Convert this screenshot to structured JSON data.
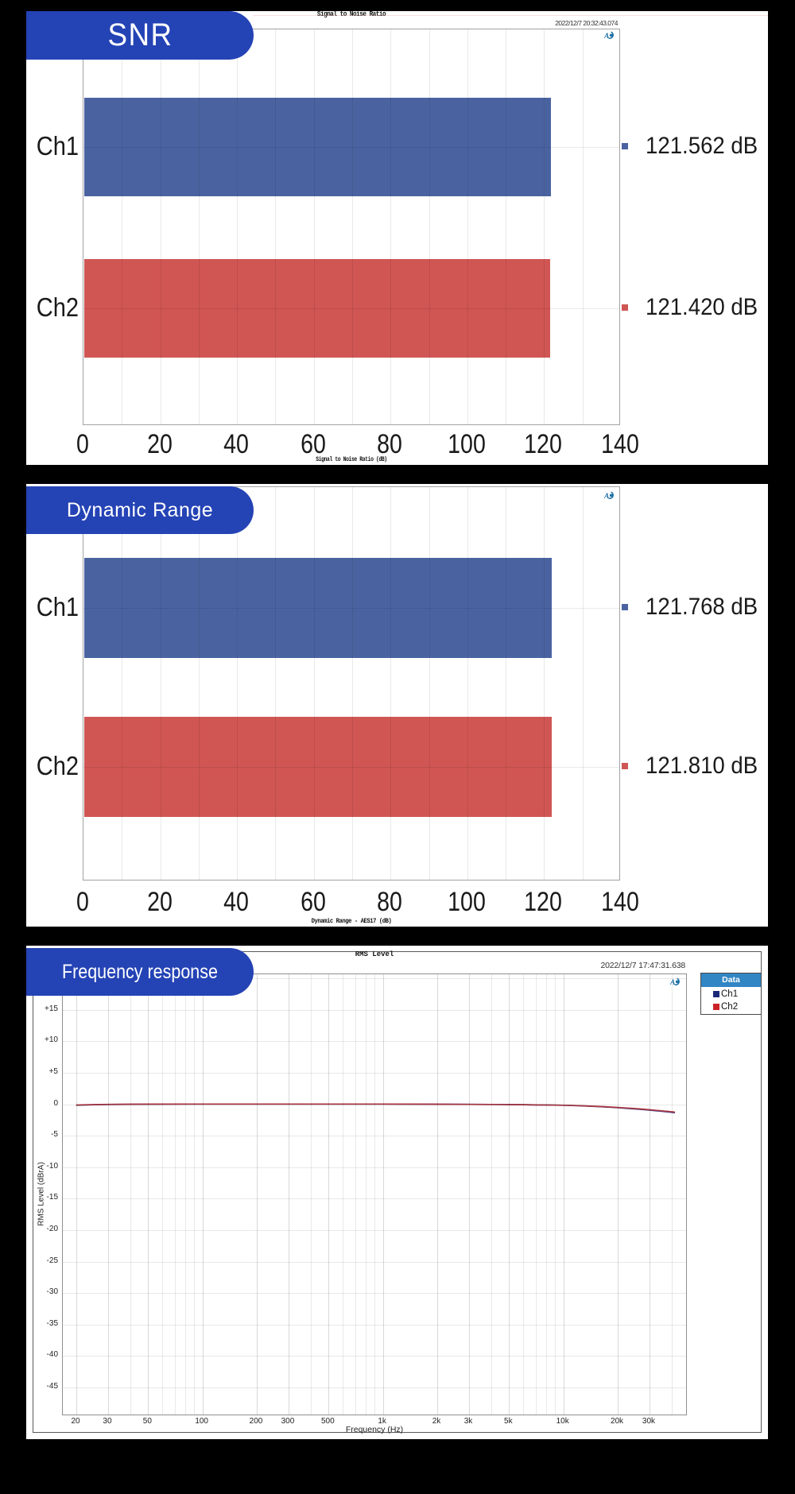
{
  "page": {
    "background": "#000000"
  },
  "colors": {
    "badge_blue": "#2443b5",
    "bar_blue": "#4a63a0",
    "bar_red": "#d05654",
    "legend_navy": "#1b2878",
    "legend_red": "#cb2227",
    "legend_header_blue": "#3386c4",
    "curve_red": "#ab3742",
    "curve_blue": "#2c3b8c",
    "ap_logo_blue": "#1d6fa5"
  },
  "chart_data": [
    {
      "type": "bar",
      "orientation": "horizontal",
      "badge": "SNR",
      "title": "Signal to Noise Ratio",
      "timestamp": "2022/12/7 20:32:43.074",
      "categories": [
        "Ch1",
        "Ch2"
      ],
      "values": [
        121.562,
        121.42
      ],
      "value_labels": [
        "121.562 dB",
        "121.420 dB"
      ],
      "bar_colors": [
        "#4a63a0",
        "#d05654"
      ],
      "xlabel": "Signal to Noise Ratio (dB)",
      "xlim": [
        0,
        140
      ],
      "x_tick_step": 20,
      "x_grid_step": 10,
      "x_tick_labels": [
        "0",
        "20",
        "40",
        "60",
        "80",
        "100",
        "120",
        "140"
      ],
      "legend_position": "none",
      "grid": true
    },
    {
      "type": "bar",
      "orientation": "horizontal",
      "badge": "Dynamic Range",
      "title": "",
      "timestamp": "",
      "categories": [
        "Ch1",
        "Ch2"
      ],
      "values": [
        121.768,
        121.81
      ],
      "value_labels": [
        "121.768 dB",
        "121.810 dB"
      ],
      "bar_colors": [
        "#4a63a0",
        "#d05654"
      ],
      "xlabel": "Dynamic Range - AES17 (dB)",
      "xlim": [
        0,
        140
      ],
      "x_tick_step": 20,
      "x_grid_step": 10,
      "x_tick_labels": [
        "0",
        "20",
        "40",
        "60",
        "80",
        "100",
        "120",
        "140"
      ],
      "legend_position": "none",
      "grid": true
    },
    {
      "type": "line",
      "x_scale": "log",
      "badge": "Frequency response",
      "title": "RMS Level",
      "timestamp": "2022/12/7 17:47:31.638",
      "xlabel": "Frequency (Hz)",
      "ylabel": "RMS Level (dBrA)",
      "ylim": [
        -49.6,
        20.6
      ],
      "xlim_hz": [
        16.7,
        48800
      ],
      "y_ticks": [
        15,
        10,
        5,
        0,
        -5,
        -10,
        -15,
        -20,
        -25,
        -30,
        -35,
        -40,
        -45
      ],
      "y_tick_labels": [
        "+15",
        "+10",
        "+5",
        "0",
        "-5",
        "-10",
        "-15",
        "-20",
        "-25",
        "-30",
        "-35",
        "-40",
        "-45"
      ],
      "y_grid_values": [
        20,
        15,
        10,
        5,
        0,
        -5,
        -10,
        -15,
        -20,
        -25,
        -30,
        -35,
        -40,
        -45
      ],
      "x_major_ticks": [
        20,
        30,
        50,
        100,
        200,
        300,
        500,
        1000,
        2000,
        3000,
        5000,
        10000,
        20000,
        30000
      ],
      "x_tick_labels": [
        "20",
        "30",
        "50",
        "100",
        "200",
        "300",
        "500",
        "1k",
        "2k",
        "3k",
        "5k",
        "10k",
        "20k",
        "30k"
      ],
      "x_minor_gridlines": [
        40,
        60,
        70,
        80,
        90,
        400,
        600,
        700,
        800,
        900,
        4000,
        6000,
        7000,
        8000,
        9000,
        40000
      ],
      "legend_position": "top-right",
      "legend": {
        "title": "Data",
        "entries": [
          {
            "label": "Ch1",
            "color": "#1b2878"
          },
          {
            "label": "Ch2",
            "color": "#cb2227"
          }
        ]
      },
      "grid": true,
      "series": [
        {
          "name": "Ch1",
          "color": "#2c3b8c",
          "points": [
            [
              20,
              -0.16
            ],
            [
              25,
              -0.09
            ],
            [
              30,
              -0.05
            ],
            [
              40,
              -0.01
            ],
            [
              50,
              0.0
            ],
            [
              80,
              0.02
            ],
            [
              150,
              0.03
            ],
            [
              300,
              0.03
            ],
            [
              600,
              0.03
            ],
            [
              1000,
              0.02
            ],
            [
              1500,
              0.01
            ],
            [
              2000,
              0.0
            ],
            [
              3000,
              -0.02
            ],
            [
              4000,
              -0.04
            ],
            [
              5000,
              -0.06
            ],
            [
              6000,
              -0.08
            ],
            [
              7000,
              -0.11
            ],
            [
              8000,
              -0.13
            ],
            [
              10000,
              -0.17
            ],
            [
              12000,
              -0.24
            ],
            [
              14000,
              -0.32
            ],
            [
              16000,
              -0.4
            ],
            [
              18000,
              -0.48
            ],
            [
              20000,
              -0.56
            ],
            [
              22000,
              -0.64
            ],
            [
              25000,
              -0.76
            ],
            [
              28000,
              -0.87
            ],
            [
              30000,
              -0.95
            ],
            [
              33000,
              -1.06
            ],
            [
              35000,
              -1.13
            ],
            [
              38000,
              -1.24
            ],
            [
              41000,
              -1.35
            ]
          ]
        },
        {
          "name": "Ch2",
          "color": "#ab3742",
          "points": [
            [
              20,
              -0.12
            ],
            [
              25,
              -0.06
            ],
            [
              30,
              -0.03
            ],
            [
              40,
              0.0
            ],
            [
              50,
              0.01
            ],
            [
              80,
              0.02
            ],
            [
              150,
              0.03
            ],
            [
              300,
              0.03
            ],
            [
              600,
              0.03
            ],
            [
              1000,
              0.02
            ],
            [
              1500,
              0.01
            ],
            [
              2000,
              0.0
            ],
            [
              3000,
              -0.02
            ],
            [
              4000,
              -0.04
            ],
            [
              5000,
              -0.06
            ],
            [
              6000,
              -0.08
            ],
            [
              7000,
              -0.11
            ],
            [
              8000,
              -0.13
            ],
            [
              10000,
              -0.17
            ],
            [
              12000,
              -0.23
            ],
            [
              14000,
              -0.3
            ],
            [
              16000,
              -0.37
            ],
            [
              18000,
              -0.44
            ],
            [
              20000,
              -0.52
            ],
            [
              22000,
              -0.59
            ],
            [
              25000,
              -0.7
            ],
            [
              28000,
              -0.81
            ],
            [
              30000,
              -0.88
            ],
            [
              33000,
              -0.98
            ],
            [
              35000,
              -1.05
            ],
            [
              38000,
              -1.15
            ],
            [
              41000,
              -1.25
            ]
          ]
        }
      ]
    }
  ]
}
